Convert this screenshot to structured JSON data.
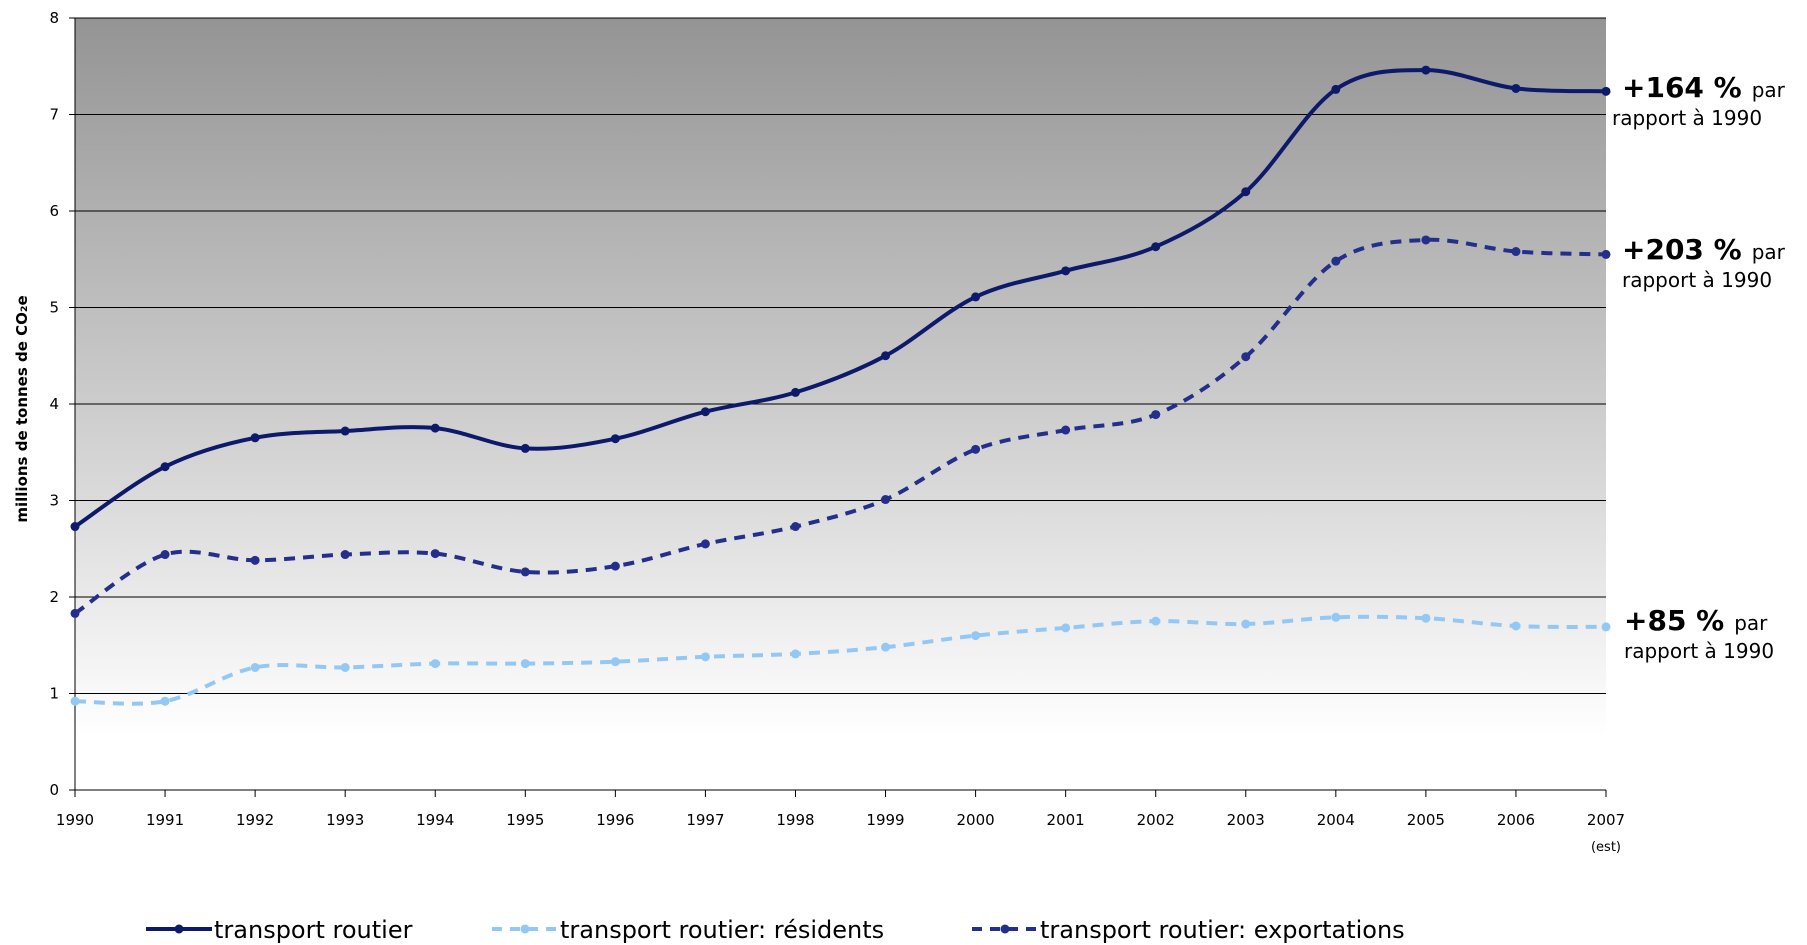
{
  "chart_data": {
    "type": "line",
    "ylabel": "millions de tonnes de CO₂e",
    "ylim": [
      0,
      8
    ],
    "yticks": [
      0,
      1,
      2,
      3,
      4,
      5,
      6,
      7,
      8
    ],
    "x": [
      "1990",
      "1991",
      "1992",
      "1993",
      "1994",
      "1995",
      "1996",
      "1997",
      "1998",
      "1999",
      "2000",
      "2001",
      "2002",
      "2003",
      "2004",
      "2005",
      "2006",
      "2007"
    ],
    "x_note": "(est)",
    "background": "vertical gradient, dark grey at top to white near bottom",
    "grid": "horizontal",
    "legend_position": "bottom",
    "series": [
      {
        "name": "transport routier",
        "color": "#0d1a6b",
        "style": "solid",
        "values": [
          2.73,
          3.35,
          3.65,
          3.72,
          3.75,
          3.54,
          3.64,
          3.92,
          4.12,
          4.5,
          5.11,
          5.38,
          5.63,
          6.2,
          7.26,
          7.46,
          7.27,
          7.24
        ]
      },
      {
        "name": "transport routier: résidents",
        "color": "#94c8f4",
        "style": "dashed",
        "values": [
          0.92,
          0.92,
          1.27,
          1.27,
          1.31,
          1.31,
          1.33,
          1.38,
          1.41,
          1.48,
          1.6,
          1.68,
          1.75,
          1.72,
          1.79,
          1.78,
          1.7,
          1.69
        ]
      },
      {
        "name": "transport routier: exportations",
        "color": "#232f8a",
        "style": "dashed",
        "values": [
          1.83,
          2.44,
          2.38,
          2.44,
          2.45,
          2.26,
          2.32,
          2.55,
          2.73,
          3.01,
          3.53,
          3.73,
          3.89,
          4.49,
          5.48,
          5.7,
          5.58,
          5.55
        ]
      }
    ],
    "annotations": [
      {
        "pct": "+164 %",
        "par": "par",
        "line2": "rapport à 1990"
      },
      {
        "pct": "+203 %",
        "par": "par",
        "line2": "rapport à 1990"
      },
      {
        "pct": "+85 %",
        "par": "par",
        "line2": "rapport à 1990"
      }
    ]
  }
}
